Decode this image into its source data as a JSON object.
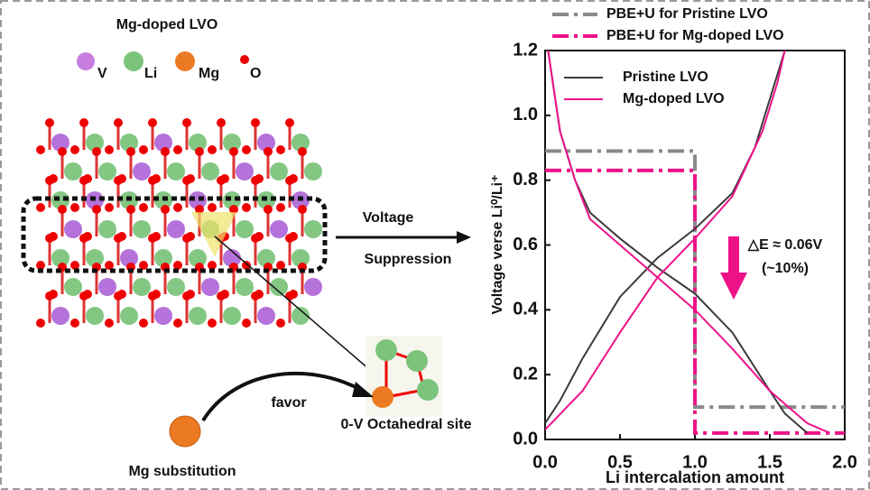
{
  "diagram": {
    "title": "Mg-doped LVO",
    "atom_labels": [
      "V",
      "Li",
      "Mg",
      "O"
    ],
    "arrow_top": "Voltage",
    "arrow_bottom": "Suppression",
    "favor": "favor",
    "site": "0-V Octahedral site",
    "substitution": "Mg substitution"
  },
  "chart_data": {
    "type": "line",
    "ylabel": "Voltage verse Li⁰/Li⁺",
    "xlabel": "Li intercalation amount",
    "xlim": [
      0,
      2
    ],
    "ylim": [
      0,
      1.2
    ],
    "xticks": [
      {
        "value": 0,
        "label": "0.0"
      },
      0.5,
      {
        "value": 1,
        "label": "1.0"
      },
      1.5,
      {
        "value": 2,
        "label": "2.0"
      }
    ],
    "yticks": [
      {
        "value": 0,
        "label": "0.0"
      },
      0.2,
      0.4,
      0.6,
      0.8,
      {
        "value": 1,
        "label": "1.0"
      },
      1.2
    ],
    "annotations": [
      "△E ≈ 0.06V",
      "(~10%)"
    ],
    "series": [
      {
        "name": "PBE+U for Pristine LVO",
        "color": "#8a8a8a",
        "dash": true,
        "x": [
          0,
          1,
          1,
          2
        ],
        "values": [
          0.89,
          0.89,
          0.1,
          0.1
        ]
      },
      {
        "name": "PBE+U for Mg-doped LVO",
        "color": "#ee1289",
        "dash": true,
        "x": [
          0,
          1,
          1,
          2
        ],
        "values": [
          0.83,
          0.83,
          0.02,
          0.02
        ]
      },
      {
        "name": "Pristine LVO",
        "color": "#3a3a3a",
        "dash": false,
        "x": [
          0.02,
          0.1,
          0.2,
          0.3,
          0.5,
          0.75,
          1.0,
          1.25,
          1.5,
          1.6,
          1.75,
          null,
          0,
          0.1,
          0.25,
          0.5,
          0.75,
          1.0,
          1.25,
          1.4,
          1.5,
          1.6
        ],
        "values": [
          1.2,
          0.95,
          0.8,
          0.7,
          0.62,
          0.53,
          0.45,
          0.33,
          0.15,
          0.08,
          0.02,
          null,
          0.05,
          0.12,
          0.25,
          0.44,
          0.56,
          0.65,
          0.76,
          0.9,
          1.05,
          1.2
        ]
      },
      {
        "name": "Mg-doped LVO",
        "color": "#ee1289",
        "dash": false,
        "x": [
          0.02,
          0.1,
          0.2,
          0.3,
          0.5,
          0.75,
          1.0,
          1.25,
          1.5,
          1.75,
          1.9,
          null,
          0,
          0.25,
          0.5,
          0.75,
          1.0,
          1.25,
          1.45,
          1.55,
          1.6
        ],
        "values": [
          1.2,
          0.95,
          0.8,
          0.68,
          0.6,
          0.5,
          0.4,
          0.28,
          0.15,
          0.05,
          0.02,
          null,
          0.03,
          0.15,
          0.33,
          0.5,
          0.62,
          0.75,
          0.95,
          1.1,
          1.2
        ]
      }
    ]
  }
}
